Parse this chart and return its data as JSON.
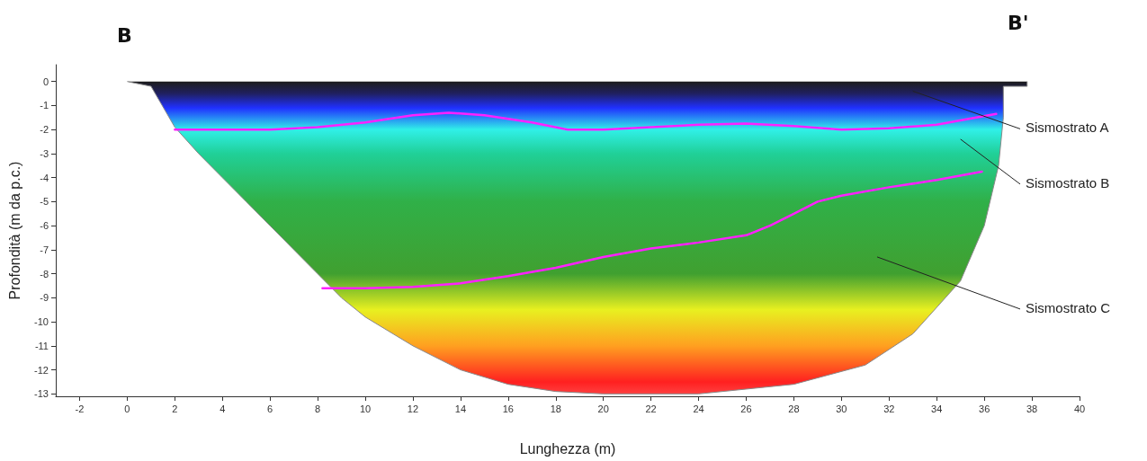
{
  "chart_data": {
    "type": "line",
    "xlabel": "Lunghezza (m)",
    "ylabel": "Profondità (m da p.c.)",
    "xlim": [
      -3,
      40
    ],
    "xticks": [
      -2,
      0,
      2,
      4,
      6,
      8,
      10,
      12,
      14,
      16,
      18,
      20,
      22,
      24,
      26,
      28,
      30,
      32,
      34,
      36,
      38,
      40
    ],
    "ylim": [
      -13.1,
      0.7
    ],
    "yticks": [
      0,
      -1,
      -2,
      -3,
      -4,
      -5,
      -6,
      -7,
      -8,
      -9,
      -10,
      -11,
      -12,
      -13
    ],
    "marker": "none",
    "line_style": "solid",
    "series": [
      {
        "type": "area",
        "x": [
          0,
          1,
          2,
          3,
          4,
          5,
          6,
          7,
          8,
          9,
          10,
          12,
          14,
          16,
          18,
          20,
          24,
          28,
          31,
          33,
          35,
          36,
          36.6,
          36.8,
          36.8,
          37.8,
          37.8
        ],
        "values": [
          0,
          -0.2,
          -1.9,
          -3,
          -4,
          -5,
          -6,
          -7,
          -8,
          -9,
          -9.8,
          -11,
          -12,
          -12.6,
          -12.9,
          -13,
          -13,
          -12.6,
          -11.8,
          -10.5,
          -8.3,
          -6,
          -3.5,
          -1.5,
          -0.2,
          -0.2,
          0
        ]
      },
      {
        "color": "#ff20ff",
        "x": [
          2,
          6,
          8,
          10,
          12,
          13.5,
          15,
          17,
          18.5,
          20,
          22,
          24,
          26,
          28,
          30,
          32,
          34,
          36.5
        ],
        "values": [
          -2,
          -2,
          -1.9,
          -1.7,
          -1.4,
          -1.3,
          -1.4,
          -1.7,
          -2,
          -2,
          -1.9,
          -1.8,
          -1.75,
          -1.85,
          -2,
          -1.95,
          -1.8,
          -1.35
        ]
      },
      {
        "color": "#ff20ff",
        "x": [
          8.2,
          10,
          12,
          14,
          16,
          18,
          20,
          22,
          24,
          26,
          27,
          28,
          29,
          30,
          32,
          34,
          35.9
        ],
        "values": [
          -8.6,
          -8.6,
          -8.55,
          -8.4,
          -8.1,
          -7.75,
          -7.3,
          -6.95,
          -6.7,
          -6.4,
          -6,
          -5.5,
          -5,
          -4.75,
          -4.4,
          -4.1,
          -3.75
        ]
      }
    ],
    "annotations": [
      "B",
      "B'",
      "Sismostrato A",
      "Sismostrato B",
      "Sismostrato C"
    ]
  }
}
